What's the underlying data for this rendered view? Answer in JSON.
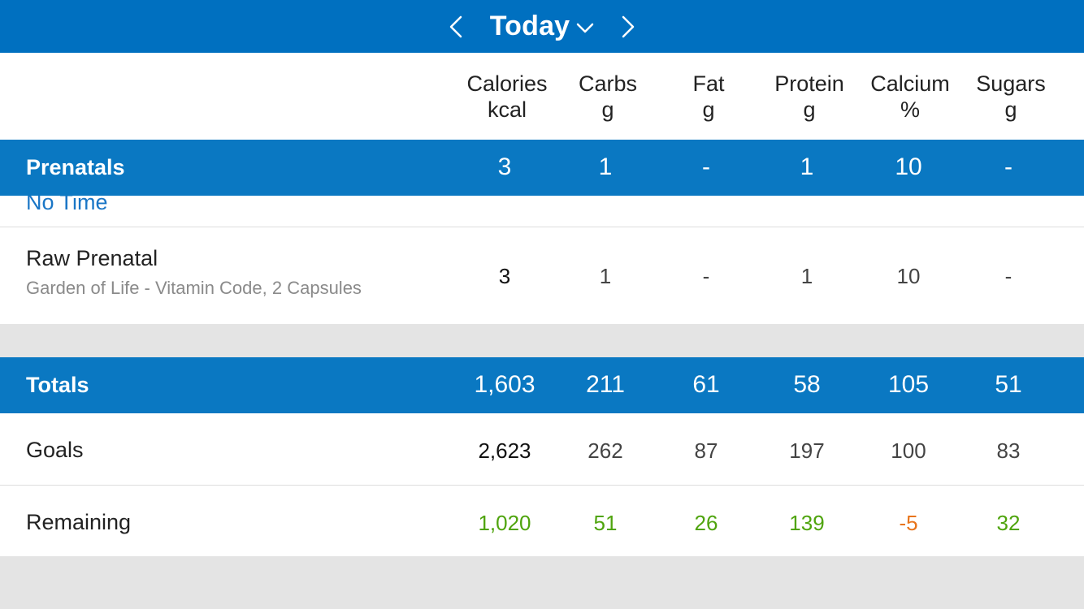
{
  "header": {
    "title": "Today",
    "bg": "#0070c0"
  },
  "columns": [
    {
      "name": "Calories",
      "unit": "kcal"
    },
    {
      "name": "Carbs",
      "unit": "g"
    },
    {
      "name": "Fat",
      "unit": "g"
    },
    {
      "name": "Protein",
      "unit": "g"
    },
    {
      "name": "Calcium",
      "unit": "%"
    },
    {
      "name": "Sugars",
      "unit": "g"
    }
  ],
  "meal": {
    "name": "Prenatals",
    "values": [
      "3",
      "1",
      "-",
      "1",
      "10",
      "-"
    ],
    "time": "No Time"
  },
  "food": {
    "name": "Raw Prenatal",
    "description": "Garden of Life - Vitamin Code, 2 Capsules",
    "values": [
      "3",
      "1",
      "-",
      "1",
      "10",
      "-"
    ]
  },
  "totals": {
    "label": "Totals",
    "values": [
      "1,603",
      "211",
      "61",
      "58",
      "105",
      "51"
    ]
  },
  "goals": {
    "label": "Goals",
    "values": [
      "2,623",
      "262",
      "87",
      "197",
      "100",
      "83"
    ]
  },
  "remaining": {
    "label": "Remaining",
    "values": [
      "1,020",
      "51",
      "26",
      "139",
      "-5",
      "32"
    ],
    "positive_color": "#4fa40d",
    "negative_color": "#e8741a"
  }
}
